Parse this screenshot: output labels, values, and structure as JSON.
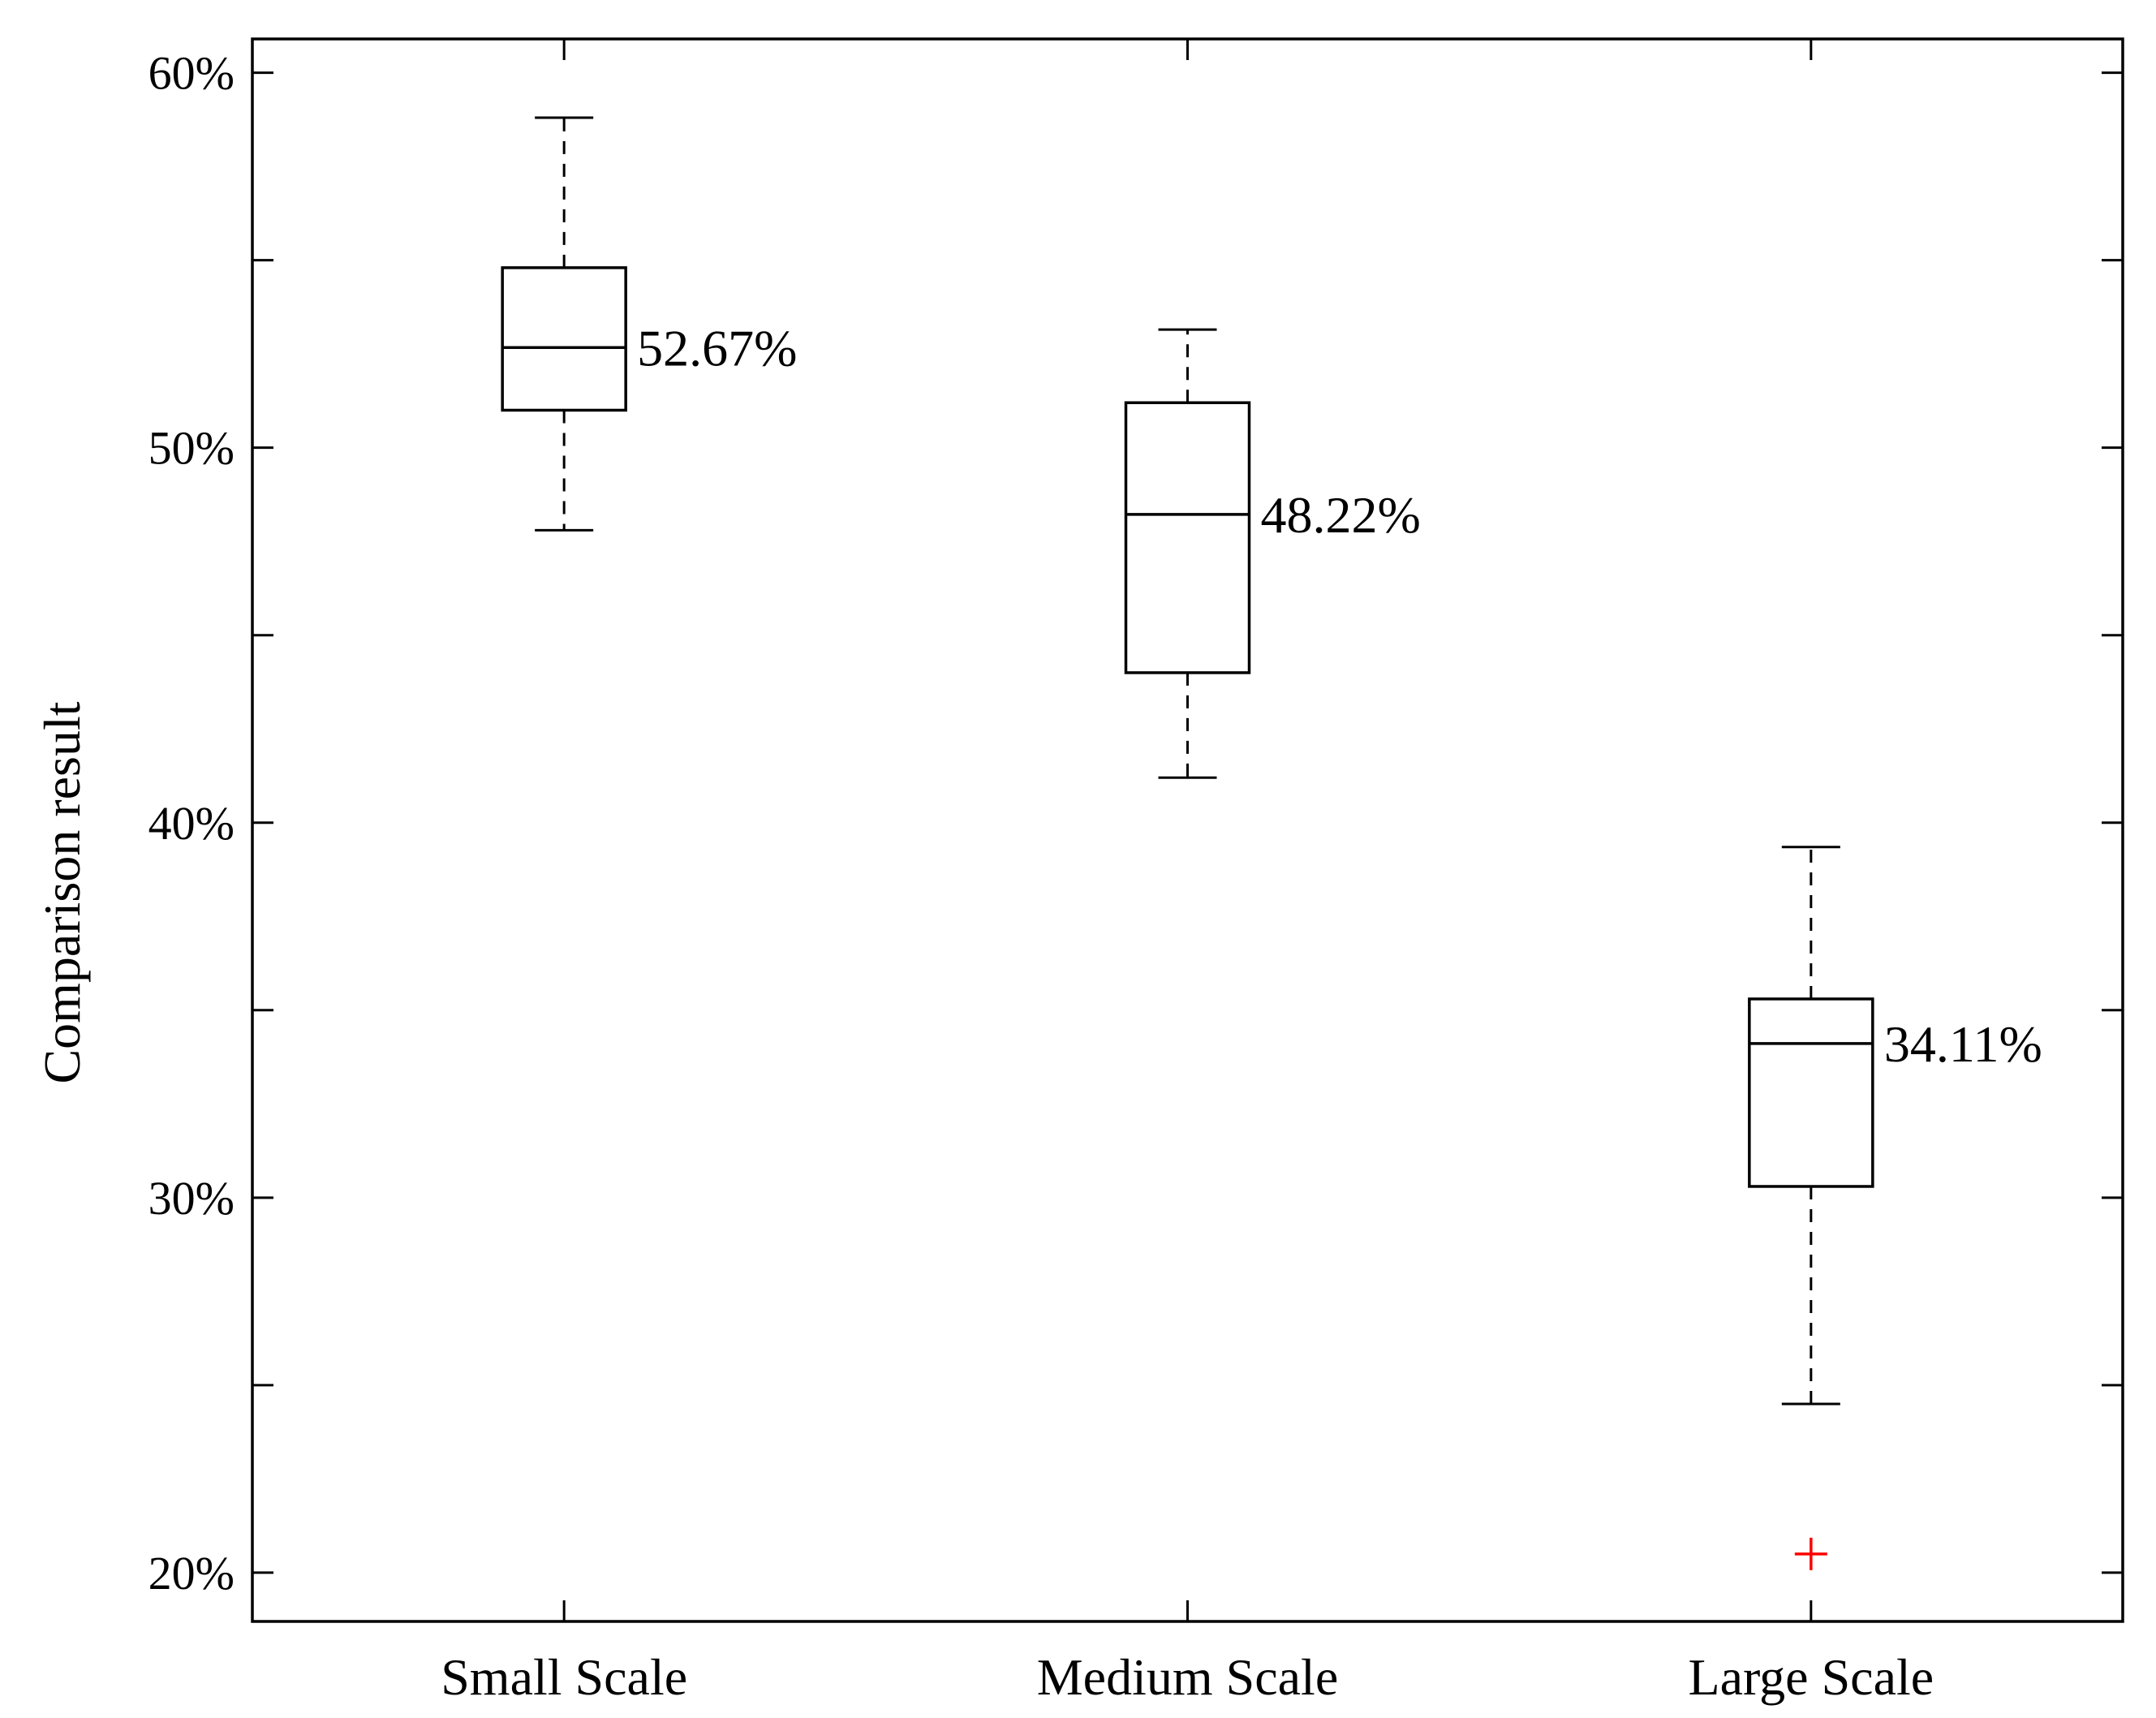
{
  "chart_data": {
    "type": "box",
    "title": "",
    "xlabel": "",
    "ylabel": "Comparison result",
    "ylim": [
      18.7,
      60.9
    ],
    "yticks": [
      20,
      30,
      40,
      50,
      60
    ],
    "ytick_labels": [
      "20%",
      "30%",
      "40%",
      "50%",
      "60%"
    ],
    "minor_yticks": [
      25,
      35,
      45,
      55
    ],
    "grid": false,
    "categories": [
      "Small Scale",
      "Medium Scale",
      "Large Scale"
    ],
    "boxes": [
      {
        "name": "Small Scale",
        "whisker_low": 47.8,
        "q1": 51.0,
        "median": 52.67,
        "q3": 54.8,
        "whisker_high": 58.8,
        "outliers": [],
        "median_label": "52.67%"
      },
      {
        "name": "Medium Scale",
        "whisker_low": 41.2,
        "q1": 44.0,
        "median": 48.22,
        "q3": 51.2,
        "whisker_high": 53.15,
        "outliers": [],
        "median_label": "48.22%"
      },
      {
        "name": "Large Scale",
        "whisker_low": 24.5,
        "q1": 30.3,
        "median": 34.11,
        "q3": 35.3,
        "whisker_high": 39.35,
        "outliers": [
          20.5
        ],
        "median_label": "34.11%"
      }
    ],
    "colors": {
      "box": "#000000",
      "outlier": "#ff0000"
    }
  }
}
